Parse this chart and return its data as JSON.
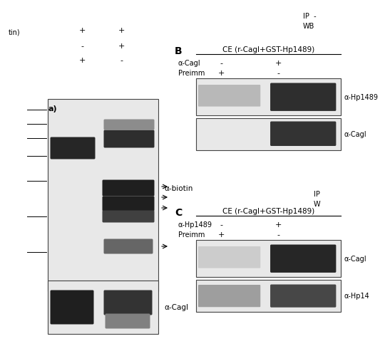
{
  "bg_color": "#ffffff",
  "left_panel": {
    "label_a": "a)",
    "tin_label": "tin)",
    "row1": [
      "+",
      "+"
    ],
    "row2": [
      "-",
      "+"
    ],
    "row3": [
      "+",
      "-"
    ],
    "ab_biotin": "α-biotin",
    "ab_cagl": "α-CagI"
  },
  "panel_B": {
    "label": "B",
    "title": "CE (r-CagI+GST-Hp1489)",
    "row1_label": "α-CagI",
    "row1_vals": [
      "-",
      "+"
    ],
    "row2_label": "Preimm",
    "row2_vals": [
      "+",
      "-"
    ],
    "ab_top": "α-Hp1489",
    "ab_bot": "α-CagI"
  },
  "panel_C": {
    "label": "C",
    "title": "CE (r-CagI+GST-Hp1489)",
    "row1_label": "α-Hp1489",
    "row1_vals": [
      "-",
      "+"
    ],
    "row2_label": "Preimm",
    "row2_vals": [
      "+",
      "-"
    ],
    "ab_top": "α-CagI",
    "ab_bot": "α-Hp14"
  }
}
